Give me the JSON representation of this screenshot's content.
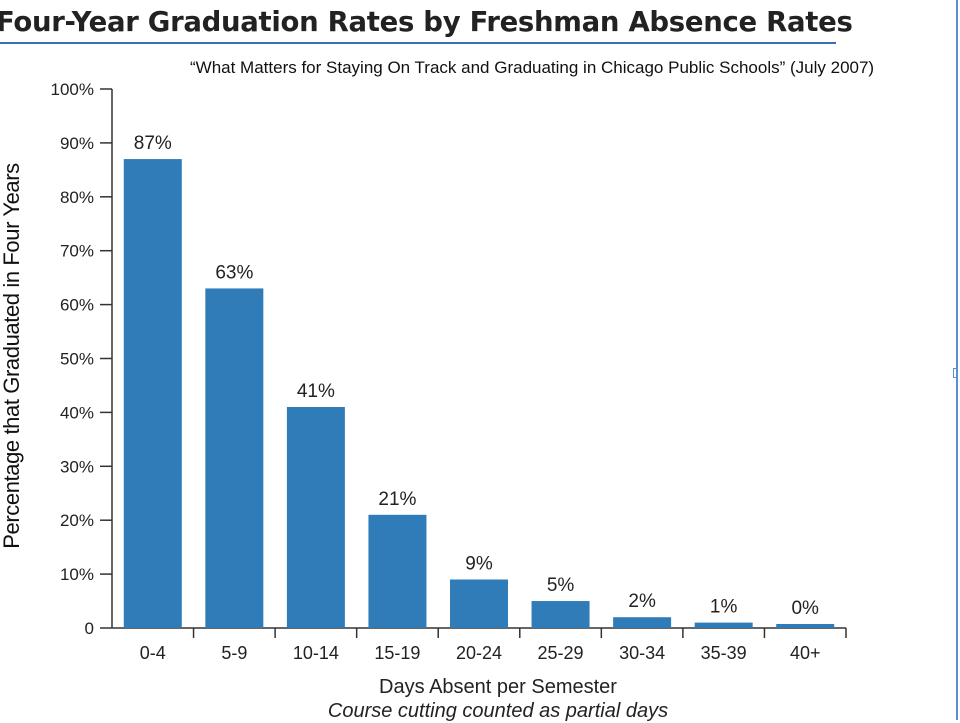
{
  "title": "Four-Year Graduation Rates by Freshman Absence Rates",
  "subtitle": "“What Matters for Staying On Track and Graduating in Chicago Public Schools” (July 2007)",
  "colors": {
    "bar": "#2f7cb8",
    "title_rule": "#3b6fb3",
    "axis": "#333333"
  },
  "chart_data": {
    "type": "bar",
    "categories": [
      "0-4",
      "5-9",
      "10-14",
      "15-19",
      "20-24",
      "25-29",
      "30-34",
      "35-39",
      "40+"
    ],
    "values": [
      87,
      63,
      41,
      21,
      9,
      5,
      2,
      1,
      0
    ],
    "data_labels": [
      "87%",
      "63%",
      "41%",
      "21%",
      "9%",
      "5%",
      "2%",
      "1%",
      "0%"
    ],
    "ylim": [
      0,
      100
    ],
    "y_ticks": [
      0,
      10,
      20,
      30,
      40,
      50,
      60,
      70,
      80,
      90,
      100
    ],
    "y_tick_labels": [
      "0",
      "10%",
      "20%",
      "30%",
      "40%",
      "50%",
      "60%",
      "70%",
      "80%",
      "90%",
      "100%"
    ],
    "ylabel": "Percentage that Graduated in Four Years",
    "xlabel": "Days Absent per Semester",
    "x_note": "Course cutting counted as partial days",
    "grid": false,
    "legend": "none"
  }
}
